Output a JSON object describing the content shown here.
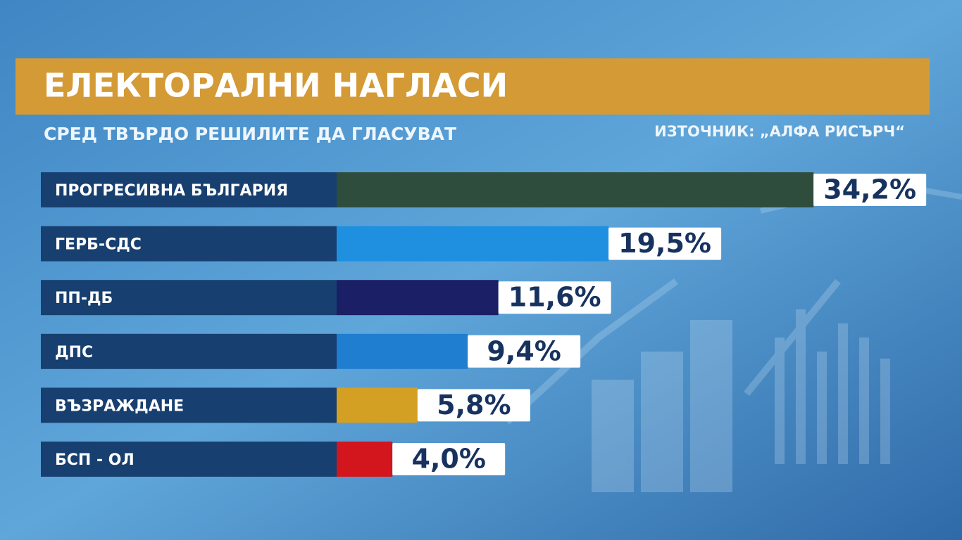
{
  "chart_data": {
    "type": "bar",
    "orientation": "horizontal",
    "title": "ЕЛЕКТОРАЛНИ НАГЛАСИ",
    "subtitle": "СРЕД ТВЪРДО РЕШИЛИТЕ ДА ГЛАСУВАТ",
    "source": "ИЗТОЧНИК: „АЛФА РИСЪРЧ“",
    "categories": [
      "ПРОГРЕСИВНА БЪЛГАРИЯ",
      "ГЕРБ-СДС",
      "ПП-ДБ",
      "ДПС",
      "ВЪЗРАЖДАНЕ",
      "БСП - ОЛ"
    ],
    "values": [
      34.2,
      19.5,
      11.6,
      9.4,
      5.8,
      4.0
    ],
    "value_labels": [
      "34,2%",
      "19,5%",
      "11,6%",
      "9,4%",
      "5,8%",
      "4,0%"
    ],
    "colors": [
      "#2f4d3d",
      "#1f8fe0",
      "#1b1f66",
      "#1f7ed0",
      "#d4a024",
      "#d3151d"
    ]
  }
}
